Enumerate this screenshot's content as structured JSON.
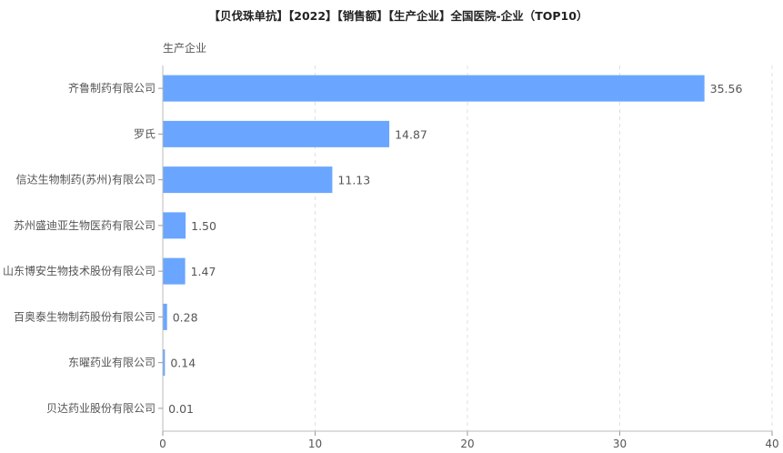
{
  "chart_data": {
    "type": "bar",
    "orientation": "horizontal",
    "title": "【贝伐珠单抗】【2022】【销售额】【生产企业】全国医院-企业（TOP10）",
    "ylabel": "生产企业",
    "xlabel": "",
    "categories": [
      "齐鲁制药有限公司",
      "罗氏",
      "信达生物制药(苏州)有限公司",
      "苏州盛迪亚生物医药有限公司",
      "山东博安生物技术股份有限公司",
      "百奥泰生物制药股份有限公司",
      "东曜药业有限公司",
      "贝达药业股份有限公司"
    ],
    "values": [
      35.56,
      14.87,
      11.13,
      1.5,
      1.47,
      0.28,
      0.14,
      0.01
    ],
    "value_labels": [
      "35.56",
      "14.87",
      "11.13",
      "1.50",
      "1.47",
      "0.28",
      "0.14",
      "0.01"
    ],
    "xlim": [
      0,
      40
    ],
    "xticks": [
      0,
      10,
      20,
      30,
      40
    ],
    "grid": true,
    "bar_color": "#6aa6ff"
  }
}
